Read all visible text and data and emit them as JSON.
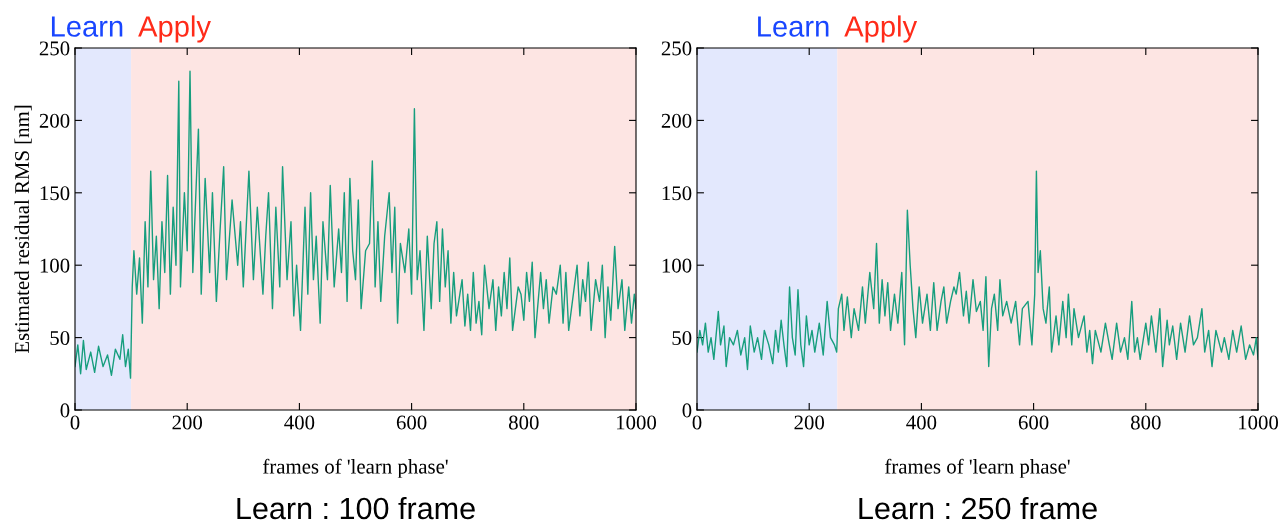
{
  "chart_data": [
    {
      "type": "line",
      "xlabel": "frames of 'learn phase'",
      "ylabel": "Estimated residual RMS [nm]",
      "xlim": [
        0,
        1000
      ],
      "ylim": [
        0,
        250
      ],
      "xticks": [
        0,
        200,
        400,
        600,
        800,
        1000
      ],
      "yticks": [
        0,
        50,
        100,
        150,
        200,
        250
      ],
      "grid": false,
      "bands": [
        {
          "axis": "x",
          "from": 0,
          "to": 100,
          "label": "Learn",
          "color": "#e3e8fd"
        },
        {
          "axis": "x",
          "from": 100,
          "to": 1000,
          "label": "Apply",
          "color": "#fde5e3"
        }
      ],
      "annotations": [
        "Learn : 100 frame"
      ],
      "series": [
        {
          "color": "#179e7e",
          "x": [
            0,
            5,
            10,
            15,
            20,
            28,
            35,
            42,
            50,
            58,
            65,
            72,
            80,
            85,
            90,
            95,
            99,
            102,
            105,
            110,
            115,
            120,
            125,
            130,
            135,
            140,
            145,
            150,
            155,
            160,
            165,
            170,
            175,
            180,
            185,
            188,
            195,
            200,
            205,
            210,
            215,
            220,
            225,
            232,
            240,
            245,
            252,
            258,
            265,
            270,
            280,
            290,
            295,
            300,
            310,
            318,
            325,
            335,
            340,
            345,
            352,
            358,
            365,
            370,
            378,
            385,
            390,
            395,
            402,
            410,
            415,
            420,
            425,
            430,
            437,
            442,
            450,
            455,
            462,
            470,
            475,
            480,
            485,
            490,
            495,
            500,
            505,
            510,
            518,
            525,
            530,
            535,
            540,
            545,
            552,
            560,
            565,
            570,
            575,
            580,
            588,
            595,
            600,
            605,
            610,
            615,
            622,
            628,
            635,
            640,
            645,
            650,
            655,
            660,
            665,
            670,
            675,
            680,
            690,
            695,
            700,
            705,
            710,
            715,
            720,
            725,
            730,
            738,
            745,
            750,
            755,
            760,
            765,
            770,
            775,
            780,
            790,
            795,
            800,
            805,
            810,
            815,
            820,
            830,
            835,
            840,
            845,
            852,
            858,
            865,
            870,
            875,
            880,
            890,
            895,
            900,
            905,
            910,
            915,
            920,
            928,
            935,
            940,
            945,
            950,
            955,
            962,
            968,
            975,
            980,
            987,
            992,
            997,
            1000
          ],
          "values": [
            30,
            45,
            25,
            48,
            28,
            40,
            26,
            44,
            30,
            38,
            24,
            42,
            35,
            52,
            30,
            42,
            22,
            85,
            110,
            80,
            105,
            60,
            130,
            85,
            165,
            90,
            120,
            70,
            130,
            95,
            162,
            80,
            140,
            100,
            227,
            85,
            150,
            110,
            234,
            95,
            145,
            194,
            80,
            160,
            95,
            150,
            75,
            120,
            168,
            90,
            145,
            100,
            130,
            85,
            165,
            90,
            140,
            80,
            120,
            150,
            70,
            140,
            85,
            168,
            90,
            130,
            65,
            100,
            55,
            140,
            80,
            150,
            90,
            120,
            60,
            130,
            90,
            155,
            85,
            125,
            95,
            150,
            75,
            160,
            110,
            90,
            145,
            70,
            110,
            115,
            172,
            85,
            130,
            75,
            120,
            150,
            95,
            140,
            60,
            115,
            95,
            125,
            80,
            208,
            90,
            110,
            55,
            120,
            70,
            115,
            130,
            75,
            125,
            85,
            110,
            60,
            95,
            65,
            90,
            58,
            80,
            55,
            95,
            60,
            75,
            52,
            100,
            70,
            90,
            55,
            85,
            65,
            95,
            70,
            105,
            55,
            85,
            80,
            62,
            95,
            75,
            102,
            50,
            95,
            70,
            90,
            60,
            85,
            80,
            100,
            60,
            95,
            55,
            85,
            100,
            65,
            90,
            75,
            102,
            55,
            90,
            75,
            100,
            50,
            85,
            62,
            113,
            70,
            90,
            55,
            85,
            60,
            80,
            70
          ]
        }
      ]
    },
    {
      "type": "line",
      "xlabel": "frames of 'learn phase'",
      "xlim": [
        0,
        1000
      ],
      "ylim": [
        0,
        250
      ],
      "xticks": [
        0,
        200,
        400,
        600,
        800,
        1000
      ],
      "yticks": [
        0,
        50,
        100,
        150,
        200,
        250
      ],
      "grid": false,
      "bands": [
        {
          "axis": "x",
          "from": 0,
          "to": 250,
          "label": "Learn",
          "color": "#e3e8fd"
        },
        {
          "axis": "x",
          "from": 250,
          "to": 1000,
          "label": "Apply",
          "color": "#fde5e3"
        }
      ],
      "annotations": [
        "Learn : 250 frame"
      ],
      "series": [
        {
          "color": "#179e7e",
          "x": [
            0,
            5,
            10,
            15,
            20,
            25,
            30,
            38,
            42,
            48,
            52,
            58,
            65,
            72,
            78,
            85,
            90,
            95,
            102,
            108,
            115,
            120,
            128,
            135,
            140,
            145,
            150,
            155,
            160,
            165,
            170,
            175,
            180,
            185,
            190,
            195,
            200,
            205,
            210,
            218,
            225,
            232,
            238,
            245,
            249,
            252,
            258,
            262,
            268,
            275,
            280,
            288,
            295,
            300,
            308,
            315,
            320,
            325,
            330,
            335,
            340,
            345,
            352,
            358,
            365,
            370,
            375,
            380,
            385,
            390,
            396,
            402,
            410,
            416,
            422,
            428,
            435,
            440,
            445,
            452,
            458,
            462,
            468,
            475,
            480,
            485,
            492,
            498,
            505,
            510,
            515,
            520,
            525,
            530,
            536,
            540,
            545,
            552,
            560,
            568,
            575,
            580,
            590,
            597,
            602,
            605,
            608,
            612,
            617,
            622,
            628,
            632,
            640,
            645,
            652,
            658,
            662,
            668,
            672,
            680,
            690,
            695,
            700,
            705,
            710,
            720,
            728,
            735,
            740,
            748,
            755,
            762,
            768,
            775,
            780,
            785,
            790,
            800,
            805,
            810,
            818,
            825,
            830,
            838,
            842,
            848,
            855,
            862,
            870,
            878,
            885,
            892,
            900,
            905,
            912,
            918,
            925,
            935,
            940,
            948,
            955,
            962,
            970,
            978,
            985,
            992,
            997,
            1000
          ],
          "values": [
            40,
            55,
            45,
            60,
            40,
            50,
            35,
            68,
            45,
            58,
            30,
            50,
            45,
            55,
            38,
            50,
            28,
            58,
            40,
            50,
            35,
            55,
            45,
            32,
            55,
            40,
            62,
            45,
            30,
            85,
            50,
            38,
            83,
            45,
            30,
            65,
            45,
            55,
            40,
            60,
            38,
            75,
            50,
            45,
            40,
            70,
            80,
            55,
            78,
            50,
            70,
            55,
            85,
            60,
            95,
            70,
            115,
            60,
            90,
            65,
            88,
            55,
            80,
            60,
            95,
            45,
            138,
            100,
            70,
            50,
            85,
            60,
            80,
            55,
            88,
            55,
            75,
            85,
            60,
            75,
            85,
            80,
            95,
            65,
            82,
            60,
            90,
            68,
            75,
            55,
            92,
            30,
            70,
            80,
            55,
            90,
            65,
            75,
            60,
            75,
            45,
            70,
            75,
            45,
            80,
            165,
            95,
            110,
            70,
            60,
            85,
            40,
            65,
            45,
            75,
            50,
            80,
            45,
            70,
            50,
            65,
            40,
            55,
            32,
            55,
            40,
            60,
            45,
            35,
            60,
            40,
            50,
            35,
            75,
            40,
            50,
            35,
            60,
            45,
            65,
            40,
            70,
            30,
            62,
            45,
            58,
            35,
            60,
            40,
            65,
            45,
            50,
            70,
            40,
            55,
            30,
            55,
            40,
            50,
            35,
            55,
            40,
            58,
            35,
            45,
            38,
            50,
            35
          ]
        }
      ]
    }
  ]
}
